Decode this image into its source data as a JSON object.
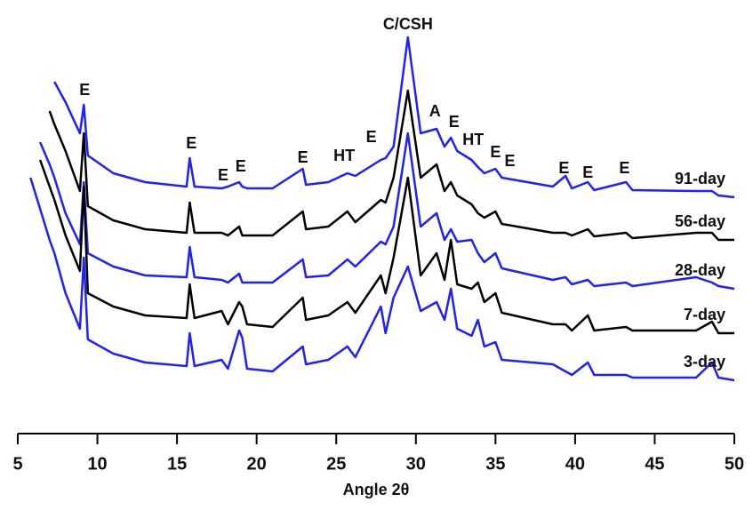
{
  "chart_data": {
    "type": "line",
    "xlabel": "Angle 2θ",
    "x": [
      5.8,
      6.4,
      7.0,
      7.3,
      8.0,
      8.9,
      9.15,
      9.4,
      11,
      13,
      15.6,
      15.8,
      16.1,
      17.8,
      18.2,
      18.9,
      19.1,
      19.4,
      21,
      22.9,
      23.1,
      24.5,
      25.7,
      26.2,
      27.8,
      28.1,
      28.6,
      29.5,
      30.3,
      31.3,
      31.8,
      32.2,
      32.6,
      33.5,
      33.9,
      34.3,
      35.0,
      35.4,
      38.6,
      39.4,
      39.8,
      40.8,
      41.2,
      43.2,
      43.6,
      47.6,
      48.6,
      49.0,
      50
    ],
    "series": [
      {
        "name": "91-day",
        "color": "#1f1fff",
        "values": [
          null,
          null,
          null,
          396,
          373,
          338,
          370,
          313,
          293,
          283,
          278,
          310,
          278,
          276,
          278,
          283,
          278,
          276,
          276,
          298,
          280,
          283,
          293,
          290,
          308,
          310,
          323,
          446,
          338,
          343,
          323,
          333,
          318,
          308,
          300,
          293,
          298,
          288,
          278,
          290,
          276,
          283,
          274,
          283,
          274,
          273,
          273,
          268,
          266
        ]
      },
      {
        "name": "56-day",
        "color": "#000000",
        "values": [
          null,
          null,
          363,
          348,
          318,
          273,
          338,
          256,
          240,
          230,
          226,
          260,
          226,
          226,
          223,
          233,
          223,
          223,
          223,
          250,
          230,
          233,
          250,
          238,
          263,
          260,
          288,
          386,
          288,
          303,
          273,
          283,
          268,
          258,
          248,
          243,
          250,
          236,
          226,
          226,
          223,
          230,
          222,
          226,
          220,
          226,
          226,
          218,
          218
        ]
      },
      {
        "name": "28-day",
        "color": "#1f1fff",
        "values": [
          null,
          328,
          303,
          288,
          248,
          213,
          283,
          203,
          188,
          178,
          176,
          210,
          176,
          173,
          170,
          180,
          170,
          170,
          170,
          196,
          176,
          178,
          196,
          188,
          216,
          213,
          233,
          338,
          233,
          248,
          218,
          230,
          216,
          218,
          203,
          193,
          203,
          186,
          173,
          176,
          168,
          173,
          166,
          170,
          166,
          176,
          170,
          166,
          163
        ]
      },
      {
        "name": "7-day",
        "color": "#000000",
        "values": [
          null,
          308,
          278,
          263,
          223,
          183,
          278,
          158,
          143,
          133,
          130,
          168,
          130,
          138,
          123,
          148,
          143,
          123,
          120,
          153,
          128,
          133,
          148,
          136,
          178,
          158,
          198,
          288,
          178,
          203,
          173,
          218,
          168,
          163,
          170,
          148,
          158,
          136,
          123,
          123,
          116,
          133,
          116,
          120,
          116,
          116,
          126,
          113,
          113
        ]
      },
      {
        "name": "3-day",
        "color": "#1f1fff",
        "values": [
          288,
          253,
          218,
          203,
          158,
          118,
          198,
          106,
          90,
          80,
          76,
          113,
          76,
          83,
          73,
          116,
          108,
          73,
          70,
          98,
          78,
          83,
          98,
          86,
          143,
          113,
          153,
          188,
          138,
          148,
          128,
          163,
          118,
          110,
          128,
          98,
          103,
          83,
          78,
          70,
          66,
          80,
          66,
          66,
          63,
          63,
          80,
          63,
          60
        ]
      }
    ],
    "annotations": [
      {
        "text": "E",
        "x": 9.2,
        "y": 386
      },
      {
        "text": "E",
        "x": 15.9,
        "y": 326
      },
      {
        "text": "E",
        "x": 17.9,
        "y": 290
      },
      {
        "text": "E",
        "x": 19.0,
        "y": 300
      },
      {
        "text": "E",
        "x": 22.9,
        "y": 310
      },
      {
        "text": "HT",
        "x": 25.5,
        "y": 312
      },
      {
        "text": "E",
        "x": 27.2,
        "y": 333
      },
      {
        "text": "C/CSH",
        "x": 29.5,
        "y": 460
      },
      {
        "text": "A",
        "x": 31.2,
        "y": 362
      },
      {
        "text": "E",
        "x": 32.4,
        "y": 350
      },
      {
        "text": "HT",
        "x": 33.6,
        "y": 330
      },
      {
        "text": "E",
        "x": 35.0,
        "y": 316
      },
      {
        "text": "E",
        "x": 35.9,
        "y": 306
      },
      {
        "text": "E",
        "x": 39.3,
        "y": 298
      },
      {
        "text": "E",
        "x": 40.8,
        "y": 293
      },
      {
        "text": "E",
        "x": 43.1,
        "y": 298
      }
    ],
    "xlim": [
      5,
      50
    ],
    "ylim": [
      0,
      488
    ],
    "xticks": [
      5,
      10,
      15,
      20,
      25,
      30,
      35,
      40,
      45,
      50
    ]
  }
}
